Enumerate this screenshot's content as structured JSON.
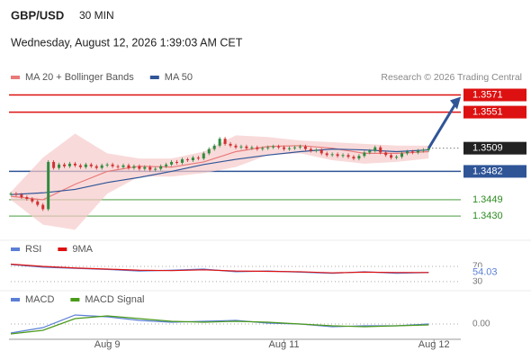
{
  "header": {
    "symbol": "GBP/USD",
    "interval": "30 MIN",
    "timestamp": "Wednesday, August 12, 2026 1:39:03 AM CET"
  },
  "chart_data": [
    {
      "type": "candlestick",
      "source": "Research © 2026 Trading Central",
      "up_color": "#2e8b3e",
      "down_color": "#d03030",
      "values": [
        1.3456,
        1.3455,
        1.3452,
        1.345,
        1.3447,
        1.3443,
        1.3438,
        1.3493,
        1.3486,
        1.349,
        1.3488,
        1.3491,
        1.3489,
        1.3487,
        1.349,
        1.3488,
        1.3486,
        1.3489,
        1.349,
        1.3488,
        1.3487,
        1.3489,
        1.3486,
        1.3488,
        1.3485,
        1.3487,
        1.3484,
        1.3485,
        1.3488,
        1.349,
        1.3493,
        1.3492,
        1.3496,
        1.3495,
        1.3498,
        1.3497,
        1.3503,
        1.3508,
        1.3512,
        1.352,
        1.3514,
        1.3512,
        1.351,
        1.3511,
        1.3509,
        1.351,
        1.3508,
        1.3509,
        1.351,
        1.3511,
        1.351,
        1.3508,
        1.3509,
        1.351,
        1.3511,
        1.3508,
        1.3506,
        1.3507,
        1.3503,
        1.3501,
        1.3502,
        1.35,
        1.3501,
        1.3499,
        1.3497,
        1.35,
        1.3504,
        1.3506,
        1.351,
        1.3504,
        1.3501,
        1.3498,
        1.3499,
        1.3503,
        1.3505,
        1.3504,
        1.3506,
        1.3507,
        1.3509
      ],
      "series": [
        {
          "name": "MA 20 + Bollinger Bands",
          "color": "#e87a7a",
          "band_color": "#f6caca",
          "x": [
            0,
            6,
            12,
            18,
            24,
            30,
            36,
            42,
            48,
            54,
            60,
            66,
            72,
            78
          ],
          "values": [
            1.3453,
            1.3449,
            1.3467,
            1.3482,
            1.3488,
            1.3487,
            1.3493,
            1.3505,
            1.3511,
            1.3512,
            1.3509,
            1.3503,
            1.3503,
            1.3505
          ],
          "upper": [
            1.3458,
            1.3498,
            1.3526,
            1.3503,
            1.3497,
            1.3497,
            1.3505,
            1.3524,
            1.3522,
            1.3518,
            1.3516,
            1.3514,
            1.3512,
            1.3512
          ],
          "lower": [
            1.3449,
            1.342,
            1.3414,
            1.3456,
            1.3476,
            1.3476,
            1.348,
            1.3487,
            1.3501,
            1.3503,
            1.3495,
            1.3491,
            1.3493,
            1.3497
          ]
        },
        {
          "name": "MA 50",
          "color": "#2f5597",
          "x": [
            0,
            6,
            12,
            18,
            24,
            30,
            36,
            42,
            48,
            54,
            60,
            66,
            72,
            78
          ],
          "values": [
            1.3455,
            1.3457,
            1.3461,
            1.3469,
            1.3475,
            1.3482,
            1.349,
            1.3496,
            1.3501,
            1.3505,
            1.3508,
            1.3507,
            1.3505,
            1.3507
          ]
        }
      ],
      "levels": [
        {
          "value": 1.3571,
          "label": "1.3571",
          "color": "#dd1111",
          "boxed": true
        },
        {
          "value": 1.3551,
          "label": "1.3551",
          "color": "#dd1111",
          "boxed": true
        },
        {
          "value": 1.3509,
          "label": "1.3509",
          "color": "#222222",
          "boxed": true
        },
        {
          "value": 1.3482,
          "label": "1.3482",
          "color": "#2f5597",
          "boxed": true
        },
        {
          "value": 1.3449,
          "label": "1.3449",
          "color": "#2e8b22",
          "boxed": false
        },
        {
          "value": 1.343,
          "label": "1.3430",
          "color": "#2e8b22",
          "boxed": false
        }
      ],
      "xlim": [
        0,
        84
      ],
      "ylim": [
        1.3407,
        1.3582
      ]
    },
    {
      "type": "line",
      "series": [
        {
          "name": "RSI",
          "color": "#5b7fd6",
          "x": [
            0,
            6,
            12,
            18,
            24,
            30,
            36,
            42,
            48,
            54,
            60,
            66,
            72,
            78
          ],
          "values": [
            75,
            68,
            65,
            62,
            58,
            60,
            63,
            56,
            58,
            55,
            52,
            56,
            52,
            54.03
          ]
        },
        {
          "name": "9MA",
          "color": "#dd1111",
          "x": [
            0,
            6,
            12,
            18,
            24,
            30,
            36,
            42,
            48,
            54,
            60,
            66,
            72,
            78
          ],
          "values": [
            76,
            70,
            66,
            63,
            60,
            59,
            61,
            58,
            57,
            56,
            53,
            55,
            54,
            54
          ]
        }
      ],
      "xlim": [
        0,
        84
      ],
      "ylim": [
        18,
        89
      ],
      "yticks": [
        70,
        30
      ]
    },
    {
      "type": "line",
      "series": [
        {
          "name": "MACD",
          "color": "#5b7fd6",
          "x": [
            0,
            6,
            12,
            18,
            24,
            30,
            36,
            42,
            48,
            54,
            60,
            66,
            72,
            78
          ],
          "values": [
            -0.001,
            -0.0004,
            0.001,
            0.0008,
            0.0004,
            0.0002,
            0.0003,
            0.0004,
            0.0001,
            0.0,
            -0.0003,
            -0.0002,
            -0.0002,
            0.0
          ]
        },
        {
          "name": "MACD Signal",
          "color": "#4a9a1a",
          "x": [
            0,
            6,
            12,
            18,
            24,
            30,
            36,
            42,
            48,
            54,
            60,
            66,
            72,
            78
          ],
          "values": [
            -0.0011,
            -0.0007,
            0.0006,
            0.0009,
            0.0006,
            0.0003,
            0.0002,
            0.0003,
            0.0002,
            0.0,
            -0.0002,
            -0.0003,
            -0.0002,
            -0.0001
          ]
        }
      ],
      "xlim": [
        0,
        84
      ],
      "ylim": [
        -0.0012,
        0.002
      ],
      "yticks": [
        {
          "value": 0,
          "label": "0.00"
        }
      ],
      "xticks": [
        {
          "value": 18,
          "label": "Aug 9"
        },
        {
          "value": 51,
          "label": "Aug 11"
        },
        {
          "value": 79,
          "label": "Aug 12"
        }
      ]
    }
  ]
}
